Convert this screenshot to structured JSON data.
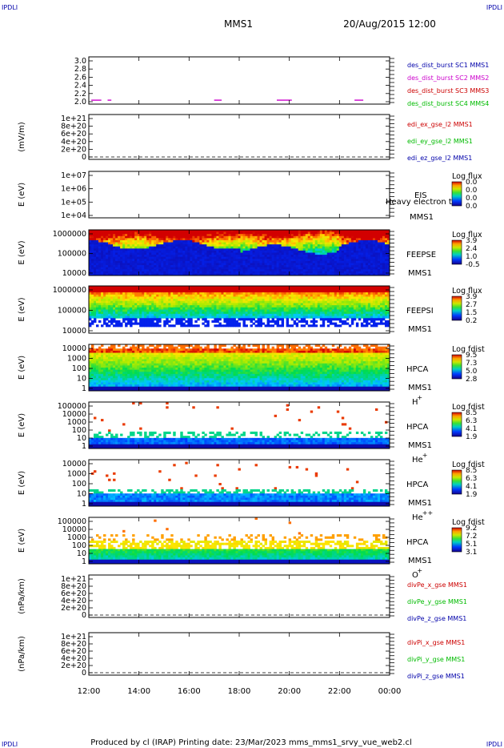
{
  "corner_tag": "IPDLI",
  "header": {
    "mission": "MMS1",
    "datetime": "20/Aug/2015 12:00"
  },
  "footer": {
    "text": "Produced by cl (IRAP)   Printing date: 23/Mar/2023   mms_mms1_srvy_vue_web2.cl"
  },
  "x_ticks": [
    "12:00",
    "14:00",
    "16:00",
    "18:00",
    "20:00",
    "22:00",
    "00:00"
  ],
  "chart_data": [
    {
      "type": "timeline",
      "y_ticks": [
        "3.0",
        "2.8",
        "2.6",
        "2.4",
        "2.2",
        "2.0"
      ],
      "ylim": [
        1.9,
        3.1
      ],
      "legend": [
        {
          "label": "des_dist_burst SC1 MMS1",
          "color": "#0000aa"
        },
        {
          "label": "des_dist_burst SC2 MMS2",
          "color": "#cc00cc"
        },
        {
          "label": "des_dist_burst SC3 MMS3",
          "color": "#cc0000"
        },
        {
          "label": "des_dist_burst SC4 MMS4",
          "color": "#00bb00"
        }
      ],
      "segments": [
        [
          12.1,
          12.5
        ],
        [
          12.75,
          12.9
        ],
        [
          17.0,
          17.3
        ],
        [
          19.5,
          20.1
        ],
        [
          22.6,
          22.95
        ]
      ],
      "segment_value": 2.0,
      "segment_color": "#cc00cc"
    },
    {
      "type": "line",
      "ylabel": "(mV/m)",
      "y_ticks": [
        "1e+21",
        "8e+20",
        "6e+20",
        "4e+20",
        "2e+20",
        "0"
      ],
      "legend": [
        {
          "label": "edi_ex_gse_l2 MMS1",
          "color": "#cc0000"
        },
        {
          "label": "edi_ey_gse_l2 MMS1",
          "color": "#00bb00"
        },
        {
          "label": "edi_ez_gse_l2 MMS1",
          "color": "#0000aa"
        }
      ],
      "baseline": 0
    },
    {
      "type": "heatmap",
      "ylabel": "E (eV)",
      "y_ticks": [
        "1e+07",
        "1e+06",
        "1e+05",
        "1e+04"
      ],
      "ylim": [
        10000,
        10000000
      ],
      "labels": [
        "EIS",
        "Heavy electron to",
        "MMS1"
      ],
      "colorbar": {
        "title": "Log flux",
        "ticks": [
          "0.0",
          "0.0",
          "0.0",
          "0.0"
        ]
      },
      "profile": "empty"
    },
    {
      "type": "heatmap",
      "ylabel": "E (eV)",
      "y_ticks": [
        "1000000",
        "100000",
        "10000"
      ],
      "ylim": [
        10000,
        1000000
      ],
      "labels": [
        "FEEPSE",
        "MMS1"
      ],
      "colorbar": {
        "title": "Log flux",
        "ticks": [
          "3.9",
          "2.4",
          "1.0",
          "-0.5"
        ]
      },
      "profile": "feepse"
    },
    {
      "type": "heatmap",
      "ylabel": "E (eV)",
      "y_ticks": [
        "1000000",
        "100000",
        "10000"
      ],
      "ylim": [
        10000,
        1000000
      ],
      "labels": [
        "FEEPSI",
        "MMS1"
      ],
      "colorbar": {
        "title": "Log flux",
        "ticks": [
          "3.9",
          "2.7",
          "1.5",
          "0.2"
        ]
      },
      "profile": "feepsi"
    },
    {
      "type": "heatmap",
      "ylabel": "E (eV)",
      "y_ticks": [
        "10000",
        "1000",
        "100",
        "10",
        "1"
      ],
      "ylim": [
        1,
        30000
      ],
      "labels": [
        "HPCA",
        "MMS1"
      ],
      "species": {
        "base": "H",
        "charge": "+"
      },
      "colorbar": {
        "title": "Log fdist",
        "ticks": [
          "9.5",
          "7.3",
          "5.0",
          "2.8"
        ]
      },
      "profile": "hplus"
    },
    {
      "type": "heatmap",
      "ylabel": "E (eV)",
      "y_ticks": [
        "100000",
        "10000",
        "1000",
        "100",
        "10",
        "1"
      ],
      "ylim": [
        1,
        100000
      ],
      "labels": [
        "HPCA",
        "MMS1"
      ],
      "species": {
        "base": "He",
        "charge": "+"
      },
      "colorbar": {
        "title": "Log fdist",
        "ticks": [
          "8.5",
          "6.3",
          "4.1",
          "1.9"
        ]
      },
      "profile": "heplus"
    },
    {
      "type": "heatmap",
      "ylabel": "E (eV)",
      "y_ticks": [
        "10000",
        "1000",
        "100",
        "10",
        "1"
      ],
      "ylim": [
        1,
        30000
      ],
      "labels": [
        "HPCA",
        "MMS1"
      ],
      "species": {
        "base": "He",
        "charge": "++"
      },
      "colorbar": {
        "title": "Log fdist",
        "ticks": [
          "8.5",
          "6.3",
          "4.1",
          "1.9"
        ]
      },
      "profile": "heplusplus"
    },
    {
      "type": "heatmap",
      "ylabel": "E (eV)",
      "y_ticks": [
        "100000",
        "10000",
        "1000",
        "100",
        "10",
        "1"
      ],
      "ylim": [
        1,
        100000
      ],
      "labels": [
        "HPCA",
        "MMS1"
      ],
      "species": {
        "base": "O",
        "charge": "+"
      },
      "colorbar": {
        "title": "Log fdist",
        "ticks": [
          "9.2",
          "7.2",
          "5.1",
          "3.1"
        ]
      },
      "profile": "oplus"
    },
    {
      "type": "line",
      "ylabel": "(nPa/km)",
      "y_ticks": [
        "1e+21",
        "8e+20",
        "6e+20",
        "4e+20",
        "2e+20",
        "0"
      ],
      "legend": [
        {
          "label": "divPe_x_gse MMS1",
          "color": "#cc0000"
        },
        {
          "label": "divPe_y_gse MMS1",
          "color": "#00bb00"
        },
        {
          "label": "divPe_z_gse MMS1",
          "color": "#0000aa"
        }
      ],
      "baseline": 0
    },
    {
      "type": "line",
      "ylabel": "(nPa/km)",
      "y_ticks": [
        "1e+21",
        "8e+20",
        "6e+20",
        "4e+20",
        "2e+20",
        "0"
      ],
      "legend": [
        {
          "label": "divPi_x_gse MMS1",
          "color": "#cc0000"
        },
        {
          "label": "divPi_y_gse MMS1",
          "color": "#00bb00"
        },
        {
          "label": "divPi_z_gse MMS1",
          "color": "#0000aa"
        }
      ],
      "baseline": 0
    }
  ]
}
